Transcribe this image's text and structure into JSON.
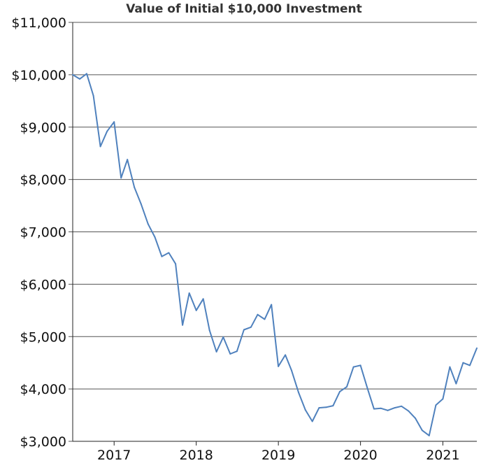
{
  "chart_data": {
    "type": "line",
    "title": "Value of Initial $10,000 Investment",
    "xlabel": "",
    "ylabel": "",
    "ylim": [
      3000,
      11000
    ],
    "xlim": [
      "2016-07-01",
      "2021-06-01"
    ],
    "grid": {
      "y": true,
      "x": false
    },
    "legend": "none",
    "y_ticks": [
      3000,
      4000,
      5000,
      6000,
      7000,
      8000,
      9000,
      10000,
      11000
    ],
    "y_tick_labels": [
      "$3,000",
      "$4,000",
      "$5,000",
      "$6,000",
      "$7,000",
      "$8,000",
      "$9,000",
      "$10,000",
      "$11,000"
    ],
    "x_ticks": [
      "2017-01-01",
      "2018-01-01",
      "2019-01-01",
      "2020-01-01",
      "2021-01-01"
    ],
    "x_tick_labels": [
      "2017",
      "2018",
      "2019",
      "2020",
      "2021"
    ],
    "series": [
      {
        "color": "#4f81bd",
        "x": [
          "2016-07-01",
          "2016-08-01",
          "2016-09-01",
          "2016-10-01",
          "2016-11-01",
          "2016-12-01",
          "2017-01-01",
          "2017-02-01",
          "2017-03-01",
          "2017-04-01",
          "2017-05-01",
          "2017-06-01",
          "2017-07-01",
          "2017-08-01",
          "2017-09-01",
          "2017-10-01",
          "2017-11-01",
          "2017-12-01",
          "2018-01-01",
          "2018-02-01",
          "2018-03-01",
          "2018-04-01",
          "2018-05-01",
          "2018-06-01",
          "2018-07-01",
          "2018-08-01",
          "2018-09-01",
          "2018-10-01",
          "2018-11-01",
          "2018-12-01",
          "2019-01-01",
          "2019-02-01",
          "2019-03-01",
          "2019-04-01",
          "2019-05-01",
          "2019-06-01",
          "2019-07-01",
          "2019-08-01",
          "2019-09-01",
          "2019-10-01",
          "2019-11-01",
          "2019-12-01",
          "2020-01-01",
          "2020-02-01",
          "2020-03-01",
          "2020-04-01",
          "2020-05-01",
          "2020-06-01",
          "2020-07-01",
          "2020-08-01",
          "2020-09-01",
          "2020-10-01",
          "2020-11-01",
          "2020-12-01",
          "2021-01-01",
          "2021-02-01",
          "2021-03-01",
          "2021-04-01",
          "2021-05-01",
          "2021-06-01"
        ],
        "values": [
          10000,
          9920,
          10020,
          9600,
          8630,
          8920,
          9100,
          8030,
          8380,
          7850,
          7530,
          7150,
          6900,
          6530,
          6600,
          6390,
          5220,
          5830,
          5500,
          5720,
          5120,
          4710,
          4990,
          4670,
          4720,
          5130,
          5180,
          5420,
          5330,
          5610,
          4430,
          4650,
          4350,
          3930,
          3600,
          3380,
          3640,
          3650,
          3680,
          3950,
          4040,
          4420,
          4450,
          4010,
          3620,
          3630,
          3590,
          3640,
          3670,
          3580,
          3440,
          3210,
          3110,
          3690,
          3810,
          4420,
          4100,
          4500,
          4450,
          4780
        ]
      }
    ]
  }
}
